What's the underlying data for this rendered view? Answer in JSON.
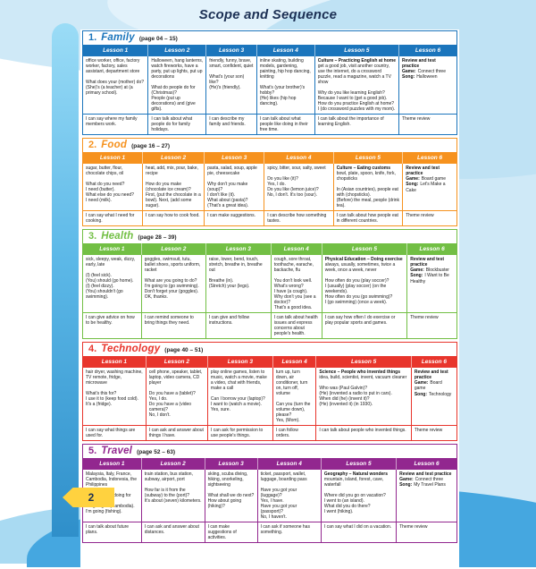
{
  "title": "Scope and Sequence",
  "page_number": "2",
  "labels": {
    "game": "Game:",
    "song": "Song:"
  },
  "units": [
    {
      "number": "1.",
      "title": "Family",
      "page_range": "(page 04 – 15)",
      "color": "#1b75bc",
      "lesson_headers": [
        "Lesson 1",
        "Lesson 2",
        "Lesson 3",
        "Lesson 4",
        "Lesson 5",
        "Lesson 6"
      ],
      "lessons": [
        {
          "body": "office worker, office, factory worker, factory, sales assistant, department store\n\nWhat does your (mother) do?\n(She)'s (a teacher) at (a primary school).",
          "can": "I can say where my family members work."
        },
        {
          "body": "Halloween, hang lanterns, watch fireworks, have a party, put up lights, put up decorations\n\nWhat do people do for (Christmas)?\nPeople (put up decorations) and (give gifts).",
          "can": "I can talk about what people do for family holidays."
        },
        {
          "body": "friendly, funny, brave, smart, confident, quiet\n\nWhat's (your son) like?\n(He)'s (friendly).",
          "can": "I can describe my family and friends."
        },
        {
          "body": "inline skating, building models, gardening, painting, hip hop dancing, knitting\n\nWhat's (your brother)'s hobby?\n(He) likes (hip hop dancing).",
          "can": "I can talk about what people like doing in their free time."
        },
        {
          "strand": "Culture – Practicing English at home",
          "body": "get a good job, visit another country, use the internet, do a crossword puzzle, read a magazine, watch a TV show\n\nWhy do you like learning English?\nBecause I want to (get a good job).\nHow do you practice English at home?\nI (do crossword puzzles with my mom).",
          "can": "I can talk about the importance of learning English."
        },
        {
          "review": "Review and test practice",
          "game": "Connect three",
          "song": "Halloween",
          "can": "Theme review"
        }
      ]
    },
    {
      "number": "2.",
      "title": "Food",
      "page_range": "(page 16 – 27)",
      "color": "#f6921e",
      "lesson_headers": [
        "Lesson 1",
        "Lesson 2",
        "Lesson 3",
        "Lesson 4",
        "Lesson 5",
        "Lesson 6"
      ],
      "lessons": [
        {
          "body": "sugar, butter, flour, chocolate chips, oil\n\nWhat do you need?\nI need (butter).\nWhat else do you need?\nI need (milk).",
          "can": "I can say what I need for cooking."
        },
        {
          "body": "heat, add, mix, pour, bake, recipe\n\nHow do you make (chocolate ice cream)?\nFirst, (put the chocolate in a bowl). Next, (add some sugar).",
          "can": "I can say how to cook food."
        },
        {
          "body": "pasta, salad, soup, apple pie, cheesecake\n\nWhy don't you make (soup)?\nI don't like (it).\nWhat about (pasta)?\n(That's a great idea).",
          "can": "I can make suggestions."
        },
        {
          "body": "spicy, bitter, sour, salty, sweet\n\nDo you like (it)?\nYes, I do.\nDo you like (lemon juice)?\nNo, I don't. It's too (sour).",
          "can": "I can describe how something tastes."
        },
        {
          "strand": "Culture – Eating customs",
          "body": "bowl, plate, spoon, knife, fork, chopsticks\n\nIn (Asian countries), people eat with (chopsticks).\n(Before) the meal, people (drink tea).",
          "can": "I can talk about how people eat in different countries."
        },
        {
          "review": "Review and test practice",
          "game": "Board game",
          "song": "Let's Make a Cake",
          "can": "Theme review"
        }
      ]
    },
    {
      "number": "3.",
      "title": "Health",
      "page_range": "(page 28 – 39)",
      "color": "#72bf44",
      "lesson_headers": [
        "Lesson 1",
        "Lesson 2",
        "Lesson 3",
        "Lesson 4",
        "Lesson 5",
        "Lesson 6"
      ],
      "lessons": [
        {
          "body": "sick, sleepy, weak, dizzy, early, late\n\n(I) (feel sick).\n(You) should (go home).\n(I) (feel dizzy).\n(You) shouldn't (go swimming).",
          "can": "I can give advice on how to be healthy."
        },
        {
          "body": "goggles, swimsuit, tutu, ballet shoes, sports uniform, racket\n\nWhat are you going to do?\nI'm going to (go swimming).\nDon't forget your (goggles).\nOK, thanks.",
          "can": "I can remind someone to bring things they need."
        },
        {
          "body": "raise, lower, bend, touch, stretch, breathe in, breathe out\n\nBreathe (in).\n(Stretch) your (legs).",
          "can": "I can give and follow instructions."
        },
        {
          "body": "cough, sore throat, toothache, earache, backache, flu\n\nYou don't look well. What's wrong?\nI have (a cough).\nWhy don't you (see a doctor)?\nThat's a good idea.",
          "can": "I can talk about health issues and express concerns about people's health."
        },
        {
          "strand": "Physical Education – Doing exercise",
          "body": "always, usually, sometimes, twice a week, once a week, never\n\nHow often do you (play soccer)?\nI (usually) (play soccer) (on the weekends).\nHow often do you (go swimming)?\nI (go swimming) (once a week).",
          "can": "I can say how often I do exercise or play popular sports and games."
        },
        {
          "review": "Review and test practice",
          "game": "Blockbuster",
          "song": "I Want to Be Healthy",
          "can": "Theme review"
        }
      ]
    },
    {
      "number": "4.",
      "title": "Technology",
      "page_range": "(page 40 – 51)",
      "color": "#e8352c",
      "lesson_headers": [
        "Lesson 1",
        "Lesson 2",
        "Lesson 3",
        "Lesson 4",
        "Lesson 5",
        "Lesson 6"
      ],
      "lessons": [
        {
          "body": "hair dryer, washing machine, TV remote, fridge, microwave\n\nWhat's this for?\nI use it to (keep food cold).\nIt's a (fridge).",
          "can": "I can say what things are used for."
        },
        {
          "body": "cell phone, speaker, tablet, laptop, video camera, CD player\n\nDo you have a (tablet)?\nYes, I do.\nDo you have a (video camera)?\nNo, I don't.",
          "can": "I can ask and answer about things I have."
        },
        {
          "body": "play online games, listen to music, watch a movie, make a video, chat with friends, make a call\n\nCan I borrow your (laptop)?\nI want to (watch a movie).\nYes, sure.",
          "can": "I can ask for permission to use people's things."
        },
        {
          "body": "turn up, turn down, air conditioner, turn on, turn off, volume\n\nCan you (turn the volume down), please?\nYes, (Mom).",
          "can": "I can follow orders."
        },
        {
          "strand": "Science – People who invented things",
          "body": "idea, build, scientist, invent, vacuum cleaner\n\nWho was (Paul Galvin)?\n(He) (invented a radio to put in cars).\nWhen did (he) (invent it)?\n(He) (invented it) (in 1930).",
          "can": "I can talk about people who invented things."
        },
        {
          "review": "Review and test practice",
          "game": "Board game",
          "song": "Technology",
          "can": "Theme review"
        }
      ]
    },
    {
      "number": "5.",
      "title": "Travel",
      "page_range": "(page 52 – 63)",
      "color": "#92278f",
      "lesson_headers": [
        "Lesson 1",
        "Lesson 2",
        "Lesson 3",
        "Lesson 4",
        "Lesson 5",
        "Lesson 6"
      ],
      "lessons": [
        {
          "body": "Malaysia, Italy, France, Cambodia, Indonesia, the Philippines\n\nWhat are you doing for the holidays?\nI'm going to (Cambodia).\nI'm going (fishing).",
          "can": "I can talk about future plans."
        },
        {
          "body": "train station, bus station, subway, airport, port\n\nHow far is it from the (subway) to the (port)?\nIt's about (seven) kilometers.",
          "can": "I can ask and answer about distances."
        },
        {
          "body": "skiing, scuba diving, hiking, snorkeling, sightseeing\n\nWhat shall we do next?\nHow about going (hiking)?",
          "can": "I can make suggestions of activities."
        },
        {
          "body": "ticket, passport, wallet, luggage, boarding pass\n\nHave you got your (luggage)?\nYes, I have.\nHave you got your (passport)?\nNo, I haven't.",
          "can": "I can ask if someone has something."
        },
        {
          "strand": "Geography – Natural wonders",
          "body": "mountain, island, forest, cave, waterfall\n\nWhere did you go on vacation?\nI went to (an island).\nWhat did you do there?\nI went (hiking).",
          "can": "I can say what I did on a vacation."
        },
        {
          "review": "Review and test practice",
          "game": "Connect three",
          "song": "My Travel Plans",
          "can": "Theme review"
        }
      ]
    }
  ]
}
